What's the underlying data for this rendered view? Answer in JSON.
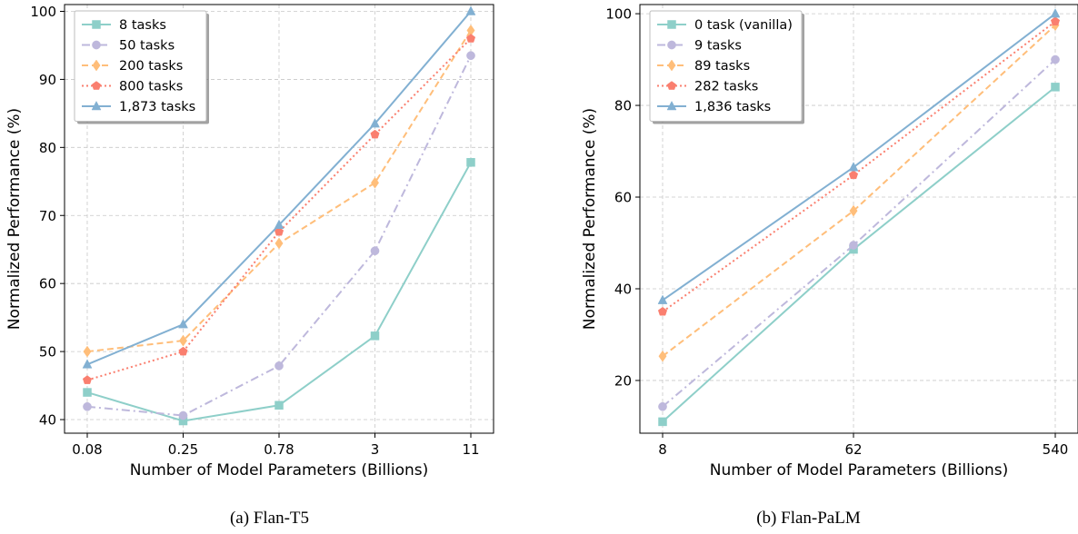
{
  "chart_data": [
    {
      "type": "line",
      "caption": "(a) Flan-T5",
      "xlabel": "Number of Model Parameters (Billions)",
      "ylabel": "Normalized Performance (%)",
      "x_scale": "categorical",
      "categories": [
        "0.08",
        "0.25",
        "0.78",
        "3",
        "11"
      ],
      "ylim": [
        38,
        101
      ],
      "yticks": [
        40,
        50,
        60,
        70,
        80,
        90,
        100
      ],
      "grid": true,
      "legend_position": "top-left",
      "series": [
        {
          "name": "8 tasks",
          "color": "#8ecfc9",
          "marker": "square",
          "dash": "solid",
          "values": [
            44.0,
            39.8,
            42.1,
            52.3,
            77.8
          ]
        },
        {
          "name": "50 tasks",
          "color": "#beb8dc",
          "marker": "circle",
          "dash": "dashdot",
          "values": [
            41.9,
            40.6,
            47.9,
            64.8,
            93.5
          ]
        },
        {
          "name": "200 tasks",
          "color": "#ffbe7a",
          "marker": "diamond",
          "dash": "dashed",
          "values": [
            50.0,
            51.6,
            65.9,
            74.8,
            97.2
          ]
        },
        {
          "name": "800 tasks",
          "color": "#fa7f6f",
          "marker": "pentagon",
          "dash": "dotted",
          "values": [
            45.8,
            50.0,
            67.6,
            81.9,
            96.0
          ]
        },
        {
          "name": "1,873 tasks",
          "color": "#82b0d2",
          "marker": "triangle",
          "dash": "solid",
          "values": [
            48.1,
            54.0,
            68.6,
            83.5,
            100.0
          ]
        }
      ]
    },
    {
      "type": "line",
      "caption": "(b) Flan-PaLM",
      "xlabel": "Number of Model Parameters (Billions)",
      "ylabel": "Normalized Performance (%)",
      "x_scale": "log",
      "x": [
        8,
        62,
        540
      ],
      "x_tick_labels": [
        "8",
        "62",
        "540"
      ],
      "ylim": [
        8.5,
        102
      ],
      "yticks": [
        20,
        40,
        60,
        80,
        100
      ],
      "grid": true,
      "legend_position": "top-left",
      "series": [
        {
          "name": "0 task (vanilla)",
          "color": "#8ecfc9",
          "marker": "square",
          "dash": "solid",
          "values": [
            11.0,
            48.6,
            84.0
          ]
        },
        {
          "name": "9 tasks",
          "color": "#beb8dc",
          "marker": "circle",
          "dash": "dashdot",
          "values": [
            14.3,
            49.5,
            90.0
          ]
        },
        {
          "name": "89 tasks",
          "color": "#ffbe7a",
          "marker": "diamond",
          "dash": "dashed",
          "values": [
            25.3,
            57.0,
            97.5
          ]
        },
        {
          "name": "282 tasks",
          "color": "#fa7f6f",
          "marker": "pentagon",
          "dash": "dotted",
          "values": [
            35.0,
            64.8,
            98.3
          ]
        },
        {
          "name": "1,836 tasks",
          "color": "#82b0d2",
          "marker": "triangle",
          "dash": "solid",
          "values": [
            37.5,
            66.5,
            100.0
          ]
        }
      ]
    }
  ]
}
